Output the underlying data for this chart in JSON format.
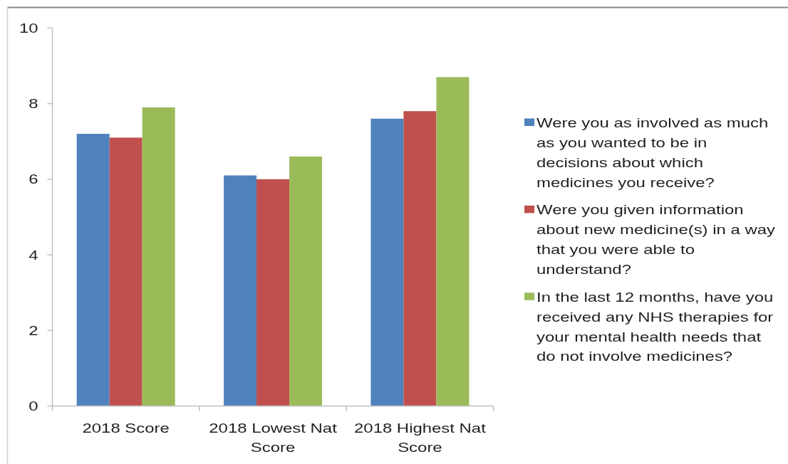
{
  "chart_data": {
    "type": "bar",
    "categories": [
      "2018 Score",
      "2018 Lowest Nat Score",
      "2018 Highest Nat Score"
    ],
    "series": [
      {
        "name": "Were you as involved as much as you wanted to be in decisions about which medicines you receive?",
        "color": "#4f81bd",
        "values": [
          7.2,
          6.1,
          7.6
        ]
      },
      {
        "name": "Were you given information about new medicine(s) in a way that you were able to understand?",
        "color": "#c0504d",
        "values": [
          7.1,
          6.0,
          7.8
        ]
      },
      {
        "name": "In the last 12 months, have you received any NHS therapies for your mental health needs that do not involve medicines?",
        "color": "#9bbb59",
        "values": [
          7.9,
          6.6,
          8.7
        ]
      }
    ],
    "ylim": [
      0,
      10
    ],
    "yticks": [
      0,
      2,
      4,
      6,
      8,
      10
    ],
    "legend": "right"
  }
}
